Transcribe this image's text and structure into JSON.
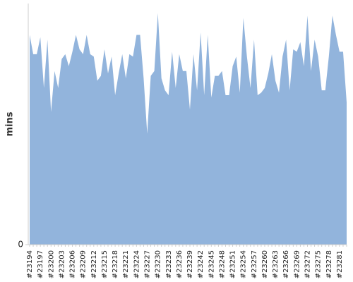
{
  "chart_data": {
    "type": "area",
    "ylabel": "mins",
    "categories": [
      "#23194",
      null,
      null,
      "#23197",
      null,
      null,
      "#23200",
      null,
      null,
      "#23203",
      null,
      null,
      "#23206",
      null,
      null,
      "#23209",
      null,
      null,
      "#23212",
      null,
      null,
      "#23215",
      null,
      null,
      "#23218",
      null,
      null,
      "#23221",
      null,
      null,
      "#23224",
      null,
      null,
      "#23227",
      null,
      null,
      "#23230",
      null,
      null,
      "#23233",
      null,
      null,
      "#23236",
      null,
      null,
      "#23239",
      null,
      null,
      "#23242",
      null,
      null,
      "#23245",
      null,
      null,
      "#23248",
      null,
      null,
      "#23251",
      null,
      null,
      "#23254",
      null,
      null,
      "#23257",
      null,
      null,
      "#23260",
      null,
      null,
      "#23263",
      null,
      null,
      "#23266",
      null,
      null,
      "#23269",
      null,
      null,
      "#23272",
      null,
      null,
      "#23275",
      null,
      null,
      "#23278",
      null,
      null,
      "#23281",
      null,
      null
    ],
    "values": [
      87,
      79,
      79,
      86,
      65,
      85,
      55,
      72,
      65,
      77,
      79,
      74,
      80,
      87,
      81,
      79,
      87,
      79,
      78,
      68,
      70,
      81,
      71,
      78,
      62,
      71,
      79,
      69,
      79,
      78,
      87,
      87,
      69,
      46,
      70,
      72,
      96,
      69,
      64,
      62,
      80,
      65,
      79,
      72,
      72,
      56,
      79,
      64,
      88,
      62,
      87,
      61,
      70,
      70,
      72,
      62,
      62,
      74,
      78,
      63,
      94,
      78,
      65,
      85,
      62,
      63,
      65,
      71,
      79,
      68,
      63,
      78,
      85,
      64,
      81,
      80,
      84,
      74,
      95,
      72,
      85,
      78,
      64,
      64,
      78,
      95,
      87,
      80,
      80,
      59
    ],
    "color": "#92b4dc",
    "ylim": [
      0,
      100
    ],
    "yticks": [
      0
    ]
  }
}
